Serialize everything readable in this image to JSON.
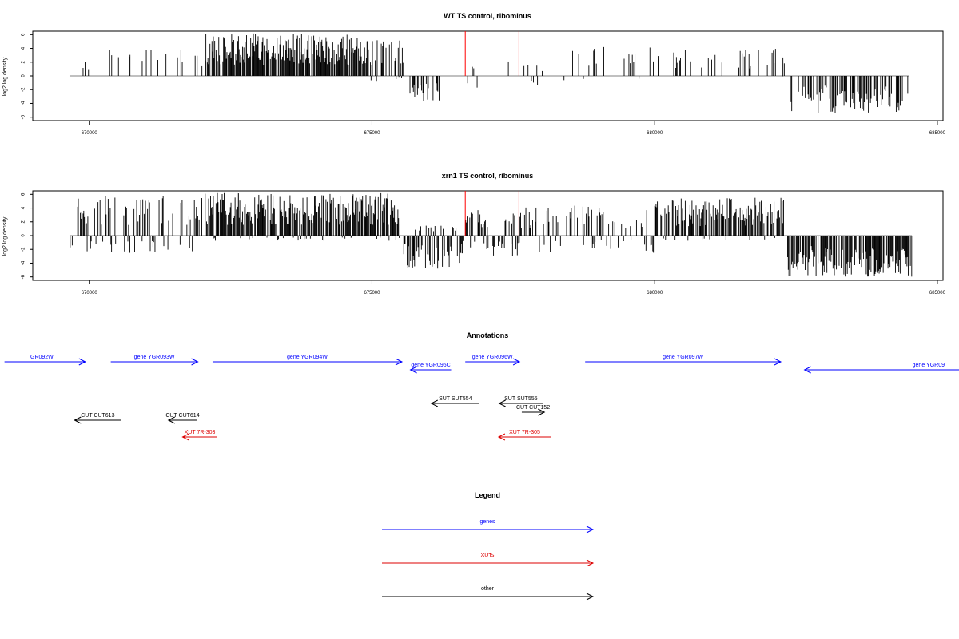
{
  "colors": {
    "density": "#000000",
    "marker": "#ff0000",
    "baseline": "#808080",
    "gene": "#0000ff",
    "xut": "#dd0000",
    "other": "#000000"
  },
  "chart_data": [
    {
      "type": "bar",
      "title": "WT TS control, ribominus",
      "ylabel": "log2 log density",
      "xlim": [
        669000,
        685100
      ],
      "ylim": [
        -6.5,
        6.5
      ],
      "x_ticks": [
        670000,
        675000,
        680000,
        685000
      ],
      "y_ticks": [
        6,
        4,
        2,
        0,
        -2,
        -4,
        -6
      ],
      "grid": false,
      "marker_positions": [
        676650,
        677600
      ],
      "segments": [
        {
          "from": 669650,
          "to": 670000,
          "density": 0.12,
          "pos_max": 2.5,
          "neg_max": 0.8
        },
        {
          "from": 670000,
          "to": 672050,
          "density": 0.09,
          "pos_max": 4.0,
          "neg_max": 0
        },
        {
          "from": 672050,
          "to": 674900,
          "density": 0.8,
          "pos_max": 6.2,
          "neg_max": 0
        },
        {
          "from": 674900,
          "to": 675550,
          "density": 0.65,
          "pos_max": 5.5,
          "neg_max": 1.0
        },
        {
          "from": 675600,
          "to": 676200,
          "density": 0.35,
          "pos_max": 0,
          "neg_max": 4.0
        },
        {
          "from": 676200,
          "to": 678400,
          "density": 0.05,
          "pos_max": 2.2,
          "neg_max": 1.8
        },
        {
          "from": 678500,
          "to": 682300,
          "density": 0.14,
          "pos_max": 4.2,
          "neg_max": 0.5
        },
        {
          "from": 682400,
          "to": 684500,
          "density": 0.4,
          "pos_max": 0,
          "neg_max": 5.5
        }
      ]
    },
    {
      "type": "bar",
      "title": "xrn1 TS control, ribominus",
      "ylabel": "log2 log density",
      "xlim": [
        669000,
        685100
      ],
      "ylim": [
        -6.5,
        6.5
      ],
      "x_ticks": [
        670000,
        675000,
        680000,
        685000
      ],
      "y_ticks": [
        6,
        4,
        2,
        0,
        -2,
        -4,
        -6
      ],
      "grid": false,
      "marker_positions": [
        676650,
        677600
      ],
      "segments": [
        {
          "from": 669650,
          "to": 672050,
          "density": 0.4,
          "pos_max": 5.8,
          "neg_max": 2.5
        },
        {
          "from": 672050,
          "to": 675500,
          "density": 0.85,
          "pos_max": 6.2,
          "neg_max": 0.8
        },
        {
          "from": 675550,
          "to": 676550,
          "density": 0.6,
          "pos_max": 1.5,
          "neg_max": 4.8
        },
        {
          "from": 676550,
          "to": 677650,
          "density": 0.45,
          "pos_max": 3.8,
          "neg_max": 3.0
        },
        {
          "from": 677650,
          "to": 680000,
          "density": 0.3,
          "pos_max": 4.5,
          "neg_max": 2.5
        },
        {
          "from": 680000,
          "to": 682300,
          "density": 0.65,
          "pos_max": 5.5,
          "neg_max": 0.8
        },
        {
          "from": 682350,
          "to": 684550,
          "density": 0.7,
          "pos_max": 0,
          "neg_max": 6.0
        }
      ]
    }
  ],
  "annotations": {
    "title": "Annotations",
    "tracks": [
      {
        "label": "GR092W",
        "type": "gene",
        "start": 668500,
        "end": 669930,
        "strand": "+",
        "row": 0
      },
      {
        "label": "gene YGR093W",
        "type": "gene",
        "start": 670380,
        "end": 671920,
        "strand": "+",
        "row": 0
      },
      {
        "label": "gene YGR094W",
        "type": "gene",
        "start": 672180,
        "end": 675530,
        "strand": "+",
        "row": 0
      },
      {
        "label": "gene YGR095C",
        "type": "gene",
        "start": 675680,
        "end": 676400,
        "strand": "-",
        "row": 1
      },
      {
        "label": "gene YGR096W",
        "type": "gene",
        "start": 676650,
        "end": 677610,
        "strand": "+",
        "row": 0
      },
      {
        "label": "gene YGR097W",
        "type": "gene",
        "start": 678770,
        "end": 682230,
        "strand": "+",
        "row": 0
      },
      {
        "label": "gene YGR09",
        "type": "gene",
        "start": 682650,
        "end": 686500,
        "strand": "-",
        "row": 1
      },
      {
        "label": "SUT SUT554",
        "type": "other",
        "start": 676050,
        "end": 676900,
        "strand": "-",
        "row": 3
      },
      {
        "label": "SUT SUT555",
        "type": "other",
        "start": 677250,
        "end": 678020,
        "strand": "-",
        "row": 3
      },
      {
        "label": "CUT CUT152",
        "type": "other",
        "start": 677650,
        "end": 678050,
        "strand": "+",
        "row": 4
      },
      {
        "label": "CUT CUT613",
        "type": "other",
        "start": 669740,
        "end": 670560,
        "strand": "-",
        "row": 5
      },
      {
        "label": "CUT CUT614",
        "type": "other",
        "start": 671400,
        "end": 671900,
        "strand": "-",
        "row": 5
      },
      {
        "label": "XUT 7R-303",
        "type": "xut",
        "start": 671650,
        "end": 672260,
        "strand": "-",
        "row": 6
      },
      {
        "label": "XUT 7R-305",
        "type": "xut",
        "start": 677240,
        "end": 678160,
        "strand": "-",
        "row": 6
      }
    ]
  },
  "legend": {
    "title": "Legend",
    "items": [
      {
        "label": "genes",
        "type": "gene"
      },
      {
        "label": "XUTs",
        "type": "xut"
      },
      {
        "label": "other",
        "type": "other"
      }
    ]
  }
}
